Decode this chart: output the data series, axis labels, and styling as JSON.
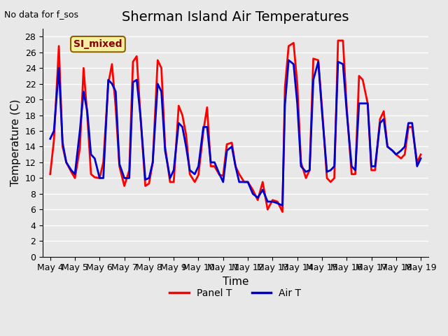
{
  "title": "Sherman Island Air Temperatures",
  "subtitle": "No data for f_sos",
  "xlabel": "Time",
  "ylabel": "Temperature (C)",
  "legend_label": "SI_mixed",
  "ylim": [
    0,
    29
  ],
  "yticks": [
    0,
    2,
    4,
    6,
    8,
    10,
    12,
    14,
    16,
    18,
    20,
    22,
    24,
    26,
    28
  ],
  "bg_color": "#e8e8e8",
  "plot_bg": "#e8e8e8",
  "grid_color": "#ffffff",
  "x_labels": [
    "May 4",
    "May 5",
    "May 6",
    "May 7",
    "May 8",
    "May 9",
    "May 10",
    "May 11",
    "May 12",
    "May 13",
    "May 14",
    "May 15",
    "May 16",
    "May 17",
    "May 18",
    "May 19"
  ],
  "panel_t_color": "#ff0000",
  "air_t_color": "#0000cc",
  "panel_t_linewidth": 2.0,
  "air_t_linewidth": 2.0,
  "panel_t_x": [
    0.0,
    0.15,
    0.35,
    0.5,
    0.65,
    0.85,
    1.0,
    1.2,
    1.35,
    1.5,
    1.65,
    1.8,
    2.0,
    2.15,
    2.35,
    2.5,
    2.65,
    2.8,
    3.0,
    3.2,
    3.35,
    3.5,
    3.65,
    3.85,
    4.0,
    4.15,
    4.35,
    4.5,
    4.65,
    4.85,
    5.0,
    5.2,
    5.35,
    5.5,
    5.65,
    5.85,
    6.0,
    6.2,
    6.35,
    6.5,
    6.65,
    6.85,
    7.0,
    7.15,
    7.35,
    7.5,
    7.65,
    7.85,
    8.0,
    8.2,
    8.4,
    8.6,
    8.8,
    9.0,
    9.2,
    9.4,
    9.5,
    9.65,
    9.85,
    10.0,
    10.15,
    10.35,
    10.5,
    10.65,
    10.85,
    11.0,
    11.2,
    11.35,
    11.5,
    11.65,
    11.85,
    12.0,
    12.2,
    12.35,
    12.5,
    12.65,
    12.85,
    13.0,
    13.15,
    13.35,
    13.5,
    13.65,
    13.85,
    14.0,
    14.2,
    14.35,
    14.5,
    14.65,
    14.85,
    15.0
  ],
  "panel_t_y": [
    10.5,
    14.8,
    26.8,
    14.0,
    12.0,
    10.8,
    10.0,
    13.8,
    24.0,
    18.0,
    10.5,
    10.1,
    10.0,
    12.0,
    22.0,
    24.5,
    19.0,
    11.5,
    9.0,
    11.0,
    24.8,
    25.5,
    18.0,
    9.0,
    9.3,
    12.0,
    25.0,
    24.0,
    14.0,
    9.5,
    9.5,
    19.2,
    18.0,
    15.5,
    10.5,
    9.5,
    10.4,
    16.0,
    19.0,
    11.5,
    11.5,
    10.4,
    10.3,
    14.3,
    14.5,
    11.5,
    10.5,
    9.5,
    9.5,
    8.5,
    7.2,
    9.5,
    6.0,
    7.2,
    7.0,
    5.7,
    21.5,
    26.8,
    27.2,
    22.0,
    12.0,
    10.0,
    11.0,
    25.2,
    25.0,
    19.0,
    10.0,
    9.5,
    10.0,
    27.5,
    27.5,
    19.0,
    10.5,
    10.5,
    23.0,
    22.5,
    19.5,
    11.0,
    11.0,
    17.5,
    18.5,
    14.0,
    13.5,
    13.0,
    12.5,
    13.0,
    16.5,
    16.5,
    12.0,
    13.0
  ],
  "air_t_x": [
    0.0,
    0.15,
    0.35,
    0.5,
    0.65,
    0.85,
    1.0,
    1.2,
    1.35,
    1.5,
    1.65,
    1.8,
    2.0,
    2.15,
    2.35,
    2.5,
    2.65,
    2.8,
    3.0,
    3.2,
    3.35,
    3.5,
    3.65,
    3.85,
    4.0,
    4.15,
    4.35,
    4.5,
    4.65,
    4.85,
    5.0,
    5.2,
    5.35,
    5.5,
    5.65,
    5.85,
    6.0,
    6.2,
    6.35,
    6.5,
    6.65,
    6.85,
    7.0,
    7.15,
    7.35,
    7.5,
    7.65,
    7.85,
    8.0,
    8.2,
    8.4,
    8.6,
    8.8,
    9.0,
    9.2,
    9.4,
    9.5,
    9.65,
    9.85,
    10.0,
    10.15,
    10.35,
    10.5,
    10.65,
    10.85,
    11.0,
    11.2,
    11.35,
    11.5,
    11.65,
    11.85,
    12.0,
    12.2,
    12.35,
    12.5,
    12.65,
    12.85,
    13.0,
    13.15,
    13.35,
    13.5,
    13.65,
    13.85,
    14.0,
    14.2,
    14.35,
    14.5,
    14.65,
    14.85,
    15.0
  ],
  "air_t_y": [
    15.0,
    16.0,
    24.0,
    14.5,
    12.0,
    11.0,
    10.5,
    16.0,
    21.0,
    18.5,
    13.0,
    12.5,
    10.0,
    10.0,
    22.5,
    22.0,
    21.0,
    11.8,
    10.0,
    10.0,
    22.2,
    22.5,
    18.0,
    9.8,
    10.0,
    12.0,
    22.0,
    21.0,
    13.5,
    10.0,
    11.0,
    17.0,
    16.5,
    14.0,
    11.0,
    10.5,
    11.5,
    16.5,
    16.5,
    12.0,
    12.0,
    10.5,
    9.5,
    13.5,
    14.0,
    11.5,
    9.5,
    9.5,
    9.5,
    8.0,
    7.5,
    8.5,
    7.0,
    7.0,
    6.8,
    6.5,
    19.3,
    25.0,
    24.5,
    19.5,
    11.5,
    10.8,
    11.0,
    22.5,
    24.8,
    18.5,
    10.8,
    11.0,
    11.5,
    24.8,
    24.5,
    18.5,
    11.5,
    11.0,
    19.5,
    19.5,
    19.5,
    11.5,
    11.5,
    17.0,
    17.5,
    14.0,
    13.5,
    13.0,
    13.5,
    14.0,
    17.0,
    17.0,
    11.5,
    12.5
  ],
  "x_tick_positions": [
    0,
    1,
    2,
    3,
    4,
    5,
    6,
    7,
    8,
    9,
    10,
    11,
    12,
    13,
    14,
    15
  ],
  "title_fontsize": 14,
  "axis_fontsize": 11,
  "tick_fontsize": 9
}
